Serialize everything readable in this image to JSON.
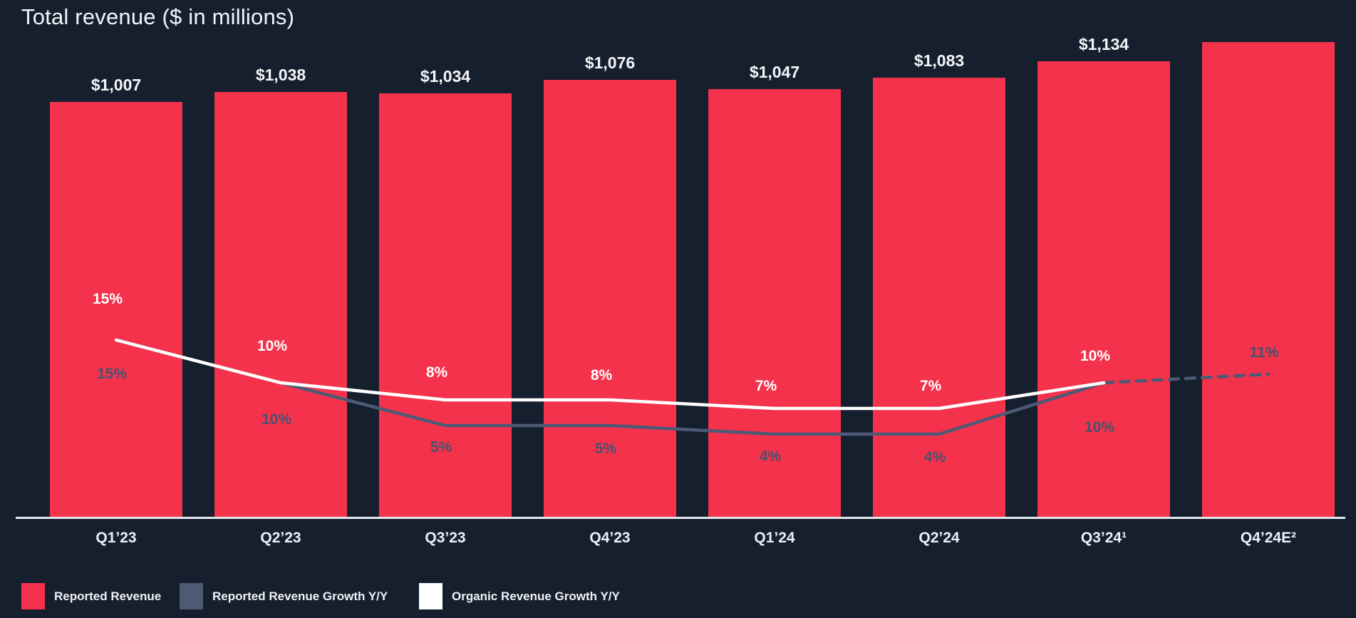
{
  "title": "Total revenue ($ in millions)",
  "colors": {
    "background": "#161F2E",
    "bar": "#F4324B",
    "reported_growth_line": "#4D5975",
    "organic_growth_line": "#FFFFFF",
    "axis": "#E2E7EE"
  },
  "chart_data": {
    "type": "bar",
    "title": "Total revenue ($ in millions)",
    "categories": [
      "Q1’23",
      "Q2’23",
      "Q3’23",
      "Q4’23",
      "Q1’24",
      "Q2’24",
      "Q3’24¹",
      "Q4’24E²"
    ],
    "series": [
      {
        "name": "Reported Revenue",
        "kind": "bar",
        "color": "#F4324B",
        "values": [
          1007,
          1038,
          1034,
          1076,
          1047,
          1083,
          1134,
          1195
        ],
        "value_labels": [
          "$1,007",
          "$1,038",
          "$1,034",
          "$1,076",
          "$1,047",
          "$1,083",
          "$1,134",
          ""
        ]
      },
      {
        "name": "Reported Revenue Growth Y/Y",
        "kind": "line",
        "color": "#4D5975",
        "unit": "%",
        "values": [
          15,
          10,
          5,
          5,
          4,
          4,
          10,
          11
        ],
        "value_labels": [
          "15%",
          "10%",
          "5%",
          "5%",
          "4%",
          "4%",
          "10%",
          "11%"
        ],
        "last_segment_dashed": true
      },
      {
        "name": "Organic Revenue Growth Y/Y",
        "kind": "line",
        "color": "#FFFFFF",
        "unit": "%",
        "values": [
          15,
          10,
          8,
          8,
          7,
          7,
          10,
          null
        ],
        "value_labels": [
          "15%",
          "10%",
          "8%",
          "8%",
          "7%",
          "7%",
          "10%",
          ""
        ]
      }
    ],
    "legend_position": "bottom-left",
    "grid": false,
    "y_axis_labels_shown": false
  },
  "legend": {
    "items": [
      {
        "label": "Reported Revenue",
        "color": "#F4324B"
      },
      {
        "label": "Reported Revenue Growth Y/Y",
        "color": "#4D5975"
      },
      {
        "label": "Organic Revenue Growth Y/Y",
        "color": "#FFFFFF"
      }
    ]
  }
}
